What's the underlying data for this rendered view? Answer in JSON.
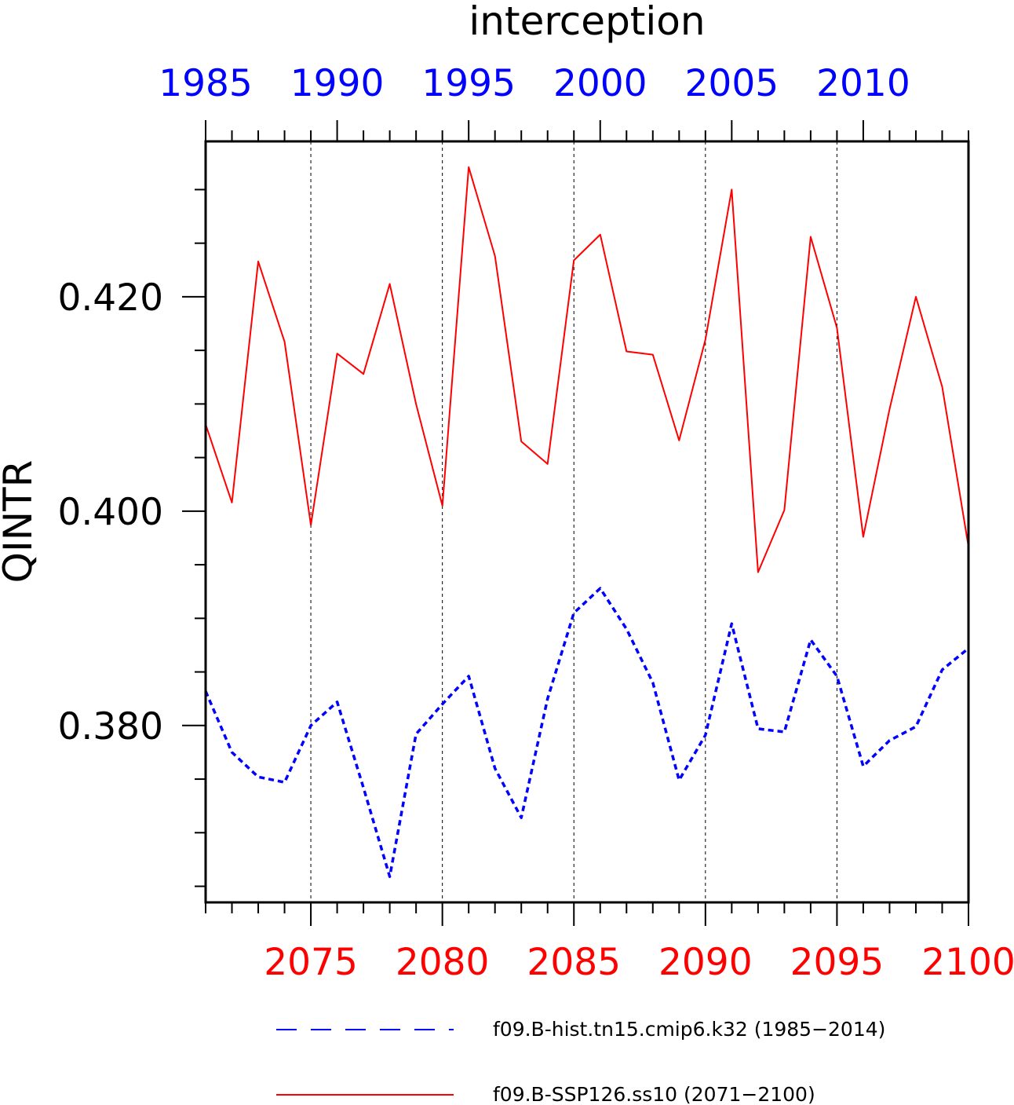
{
  "chart_data": {
    "type": "line",
    "title": "interception",
    "ylabel": "QINTR",
    "ylim": [
      0.3635,
      0.4345
    ],
    "yticks": [
      "0.380",
      "0.400",
      "0.420"
    ],
    "x_bottom": {
      "range": [
        2071,
        2100
      ],
      "ticks": [
        "2075",
        "2080",
        "2085",
        "2090",
        "2095",
        "2100"
      ],
      "color": "#ff0000"
    },
    "x_top": {
      "range": [
        1985,
        2014
      ],
      "ticks": [
        "1985",
        "1990",
        "1995",
        "2000",
        "2005",
        "2010"
      ],
      "color": "#0000ff"
    },
    "grid": "vertical dashed at major bottom ticks",
    "series": [
      {
        "name": "f09.B-hist.tn15.cmip6.k32 (1985−2014)",
        "color": "#0000ff",
        "style": "dashed",
        "x": [
          1985,
          1986,
          1987,
          1988,
          1989,
          1990,
          1991,
          1992,
          1993,
          1994,
          1995,
          1996,
          1997,
          1998,
          1999,
          2000,
          2001,
          2002,
          2003,
          2004,
          2005,
          2006,
          2007,
          2008,
          2009,
          2010,
          2011,
          2012,
          2013,
          2014
        ],
        "values": [
          0.3832,
          0.3775,
          0.3752,
          0.3747,
          0.38,
          0.3822,
          0.3742,
          0.3659,
          0.3792,
          0.382,
          0.3846,
          0.376,
          0.3714,
          0.3825,
          0.3905,
          0.3928,
          0.389,
          0.384,
          0.3749,
          0.3791,
          0.3895,
          0.3797,
          0.3794,
          0.388,
          0.3846,
          0.3762,
          0.3786,
          0.3799,
          0.3852,
          0.3872
        ]
      },
      {
        "name": "f09.B-SSP126.ss10 (2071−2100)",
        "color": "#ff0000",
        "style": "solid",
        "x": [
          2071,
          2072,
          2073,
          2074,
          2075,
          2076,
          2077,
          2078,
          2079,
          2080,
          2081,
          2082,
          2083,
          2084,
          2085,
          2086,
          2087,
          2088,
          2089,
          2090,
          2091,
          2092,
          2093,
          2094,
          2095,
          2096,
          2097,
          2098,
          2099,
          2100
        ],
        "values": [
          0.4081,
          0.4008,
          0.4233,
          0.4158,
          0.3987,
          0.4147,
          0.4128,
          0.4212,
          0.41,
          0.4005,
          0.4321,
          0.4238,
          0.4065,
          0.4044,
          0.4234,
          0.4258,
          0.4149,
          0.4146,
          0.4066,
          0.416,
          0.43,
          0.3943,
          0.4001,
          0.4256,
          0.4171,
          0.3976,
          0.4095,
          0.42,
          0.4116,
          0.3967
        ]
      }
    ],
    "legend": {
      "placement": "bottom",
      "entries": [
        "f09.B-hist.tn15.cmip6.k32 (1985−2014)",
        "f09.B-SSP126.ss10 (2071−2100)"
      ]
    }
  }
}
